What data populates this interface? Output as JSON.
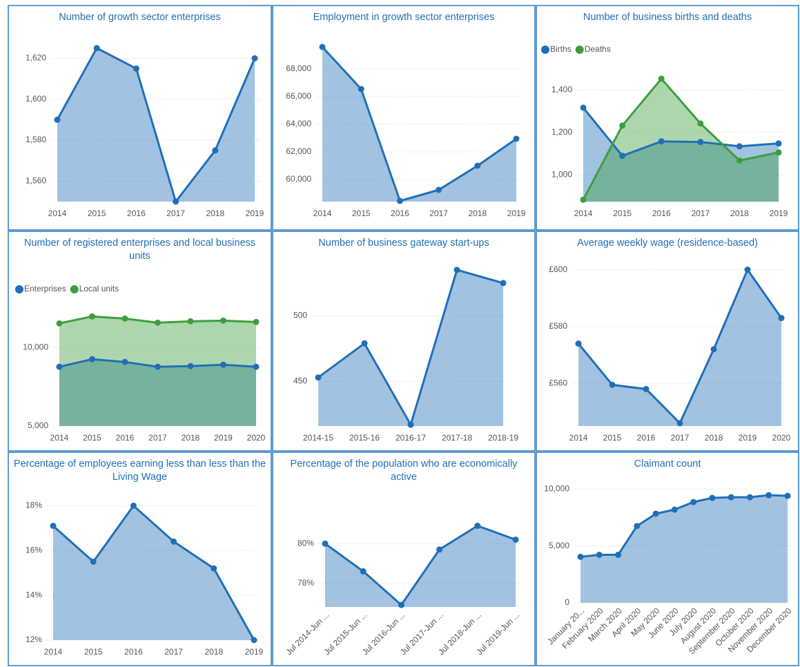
{
  "chart_data": [
    {
      "type": "area",
      "title": "Number of growth sector enterprises",
      "categories": [
        "2014",
        "2015",
        "2016",
        "2017",
        "2018",
        "2019"
      ],
      "values": [
        1590,
        1625,
        1615,
        1550,
        1575,
        1620
      ],
      "color": "#1f6fb8",
      "ylim": [
        1550,
        1635
      ],
      "yticks": [
        {
          "value": 1560,
          "label": "1,560"
        },
        {
          "value": 1580,
          "label": "1,580"
        },
        {
          "value": 1600,
          "label": "1,600"
        },
        {
          "value": 1620,
          "label": "1,620"
        }
      ],
      "grid": true
    },
    {
      "type": "area",
      "title": "Employment in growth sector enterprises",
      "categories": [
        "2014",
        "2015",
        "2016",
        "2017",
        "2018",
        "2019"
      ],
      "values": [
        69600,
        66550,
        58450,
        59250,
        61000,
        62950
      ],
      "color": "#1f6fb8",
      "ylim": [
        58400,
        71000
      ],
      "yticks": [
        {
          "value": 60000,
          "label": "60,000"
        },
        {
          "value": 62000,
          "label": "62,000"
        },
        {
          "value": 64000,
          "label": "64,000"
        },
        {
          "value": 66000,
          "label": "66,000"
        },
        {
          "value": 68000,
          "label": "68,000"
        }
      ],
      "grid": true
    },
    {
      "type": "area",
      "title": "Number of business births and deaths",
      "categories": [
        "2014",
        "2015",
        "2016",
        "2017",
        "2018",
        "2019"
      ],
      "series": [
        {
          "name": "Births",
          "color": "#1f6fb8",
          "values": [
            1316,
            1090,
            1158,
            1155,
            1135,
            1148
          ]
        },
        {
          "name": "Deaths",
          "color": "#3e9e3e",
          "values": [
            884,
            1232,
            1452,
            1242,
            1068,
            1106
          ]
        }
      ],
      "ylim": [
        875,
        1530
      ],
      "yticks": [
        {
          "value": 1000,
          "label": "1,000"
        },
        {
          "value": 1200,
          "label": "1,200"
        },
        {
          "value": 1400,
          "label": "1,400"
        }
      ],
      "grid": true
    },
    {
      "type": "area",
      "title": "Number of registered enterprises and local business units",
      "categories": [
        "2014",
        "2015",
        "2016",
        "2017",
        "2018",
        "2019",
        "2020"
      ],
      "series": [
        {
          "name": "Enterprises",
          "color": "#1f6fb8",
          "values": [
            8772,
            9254,
            9079,
            8770,
            8815,
            8903,
            8770
          ]
        },
        {
          "name": "Local units",
          "color": "#3e9e3e",
          "values": [
            11535,
            11974,
            11842,
            11579,
            11667,
            11710,
            11623
          ]
        }
      ],
      "ylim": [
        5000,
        13000
      ],
      "yticks": [
        {
          "value": 5000,
          "label": "5,000"
        },
        {
          "value": 10000,
          "label": "10,000"
        }
      ],
      "grid": true
    },
    {
      "type": "area",
      "title": "Number of business gateway start-ups",
      "categories": [
        "2014-15",
        "2015-16",
        "2016-17",
        "2017-18",
        "2018-19"
      ],
      "values": [
        453,
        479,
        417,
        535,
        525
      ],
      "color": "#1f6fb8",
      "ylim": [
        416,
        546
      ],
      "yticks": [
        450,
        500
      ],
      "grid": true
    },
    {
      "type": "area",
      "title": "Average weekly wage (residence-based)",
      "categories": [
        "2014",
        "2015",
        "2016",
        "2017",
        "2018",
        "2019",
        "2020"
      ],
      "values": [
        574,
        559.5,
        558,
        546,
        572,
        600,
        583
      ],
      "color": "#1f6fb8",
      "ylim": [
        545,
        605
      ],
      "yticks": [
        {
          "value": 560,
          "label": "£560"
        },
        {
          "value": 580,
          "label": "£580"
        },
        {
          "value": 600,
          "label": "£600"
        }
      ],
      "grid": true
    },
    {
      "type": "area",
      "title": "Percentage of employees earning less than less than the Living Wage",
      "categories": [
        "2014",
        "2015",
        "2016",
        "2017",
        "2018",
        "2019"
      ],
      "values": [
        17.1,
        15.5,
        18.0,
        16.4,
        15.2,
        12.0
      ],
      "color": "#1f6fb8",
      "ylim": [
        12,
        19
      ],
      "yticks": [
        {
          "value": 12,
          "label": "12%"
        },
        {
          "value": 14,
          "label": "14%"
        },
        {
          "value": 16,
          "label": "16%"
        },
        {
          "value": 18,
          "label": "18%"
        }
      ],
      "grid": true
    },
    {
      "type": "area",
      "title": "Percentage of the population who are economically active",
      "categories": [
        "Jul 2014-Jun ...",
        "Jul 2015-Jun ...",
        "Jul 2016-Jun ...",
        "Jul 2017-Jun ...",
        "Jul 2018-Jun ...",
        "Jul 2019-Jun ..."
      ],
      "values": [
        80.0,
        78.6,
        76.9,
        79.7,
        80.9,
        80.2
      ],
      "color": "#1f6fb8",
      "ylim": [
        76.8,
        82
      ],
      "yticks": [
        {
          "value": 78,
          "label": "78%"
        },
        {
          "value": 80,
          "label": "80%"
        }
      ],
      "grid": true
    },
    {
      "type": "area",
      "title": "Claimant count",
      "categories": [
        "January 20...",
        "February 2020",
        "March 2020",
        "April 2020",
        "May 2020",
        "June 2020",
        "July 2020",
        "August 2020",
        "September 2020",
        "October 2020",
        "November 2020",
        "December 2020"
      ],
      "values": [
        4040,
        4217,
        4217,
        6747,
        7831,
        8193,
        8855,
        9217,
        9277,
        9277,
        9458,
        9398
      ],
      "color": "#1f6fb8",
      "ylim": [
        0,
        10500
      ],
      "yticks": [
        0,
        {
          "value": 5000,
          "label": "5,000"
        },
        {
          "value": 10000,
          "label": "10,000"
        }
      ],
      "grid": true
    }
  ]
}
